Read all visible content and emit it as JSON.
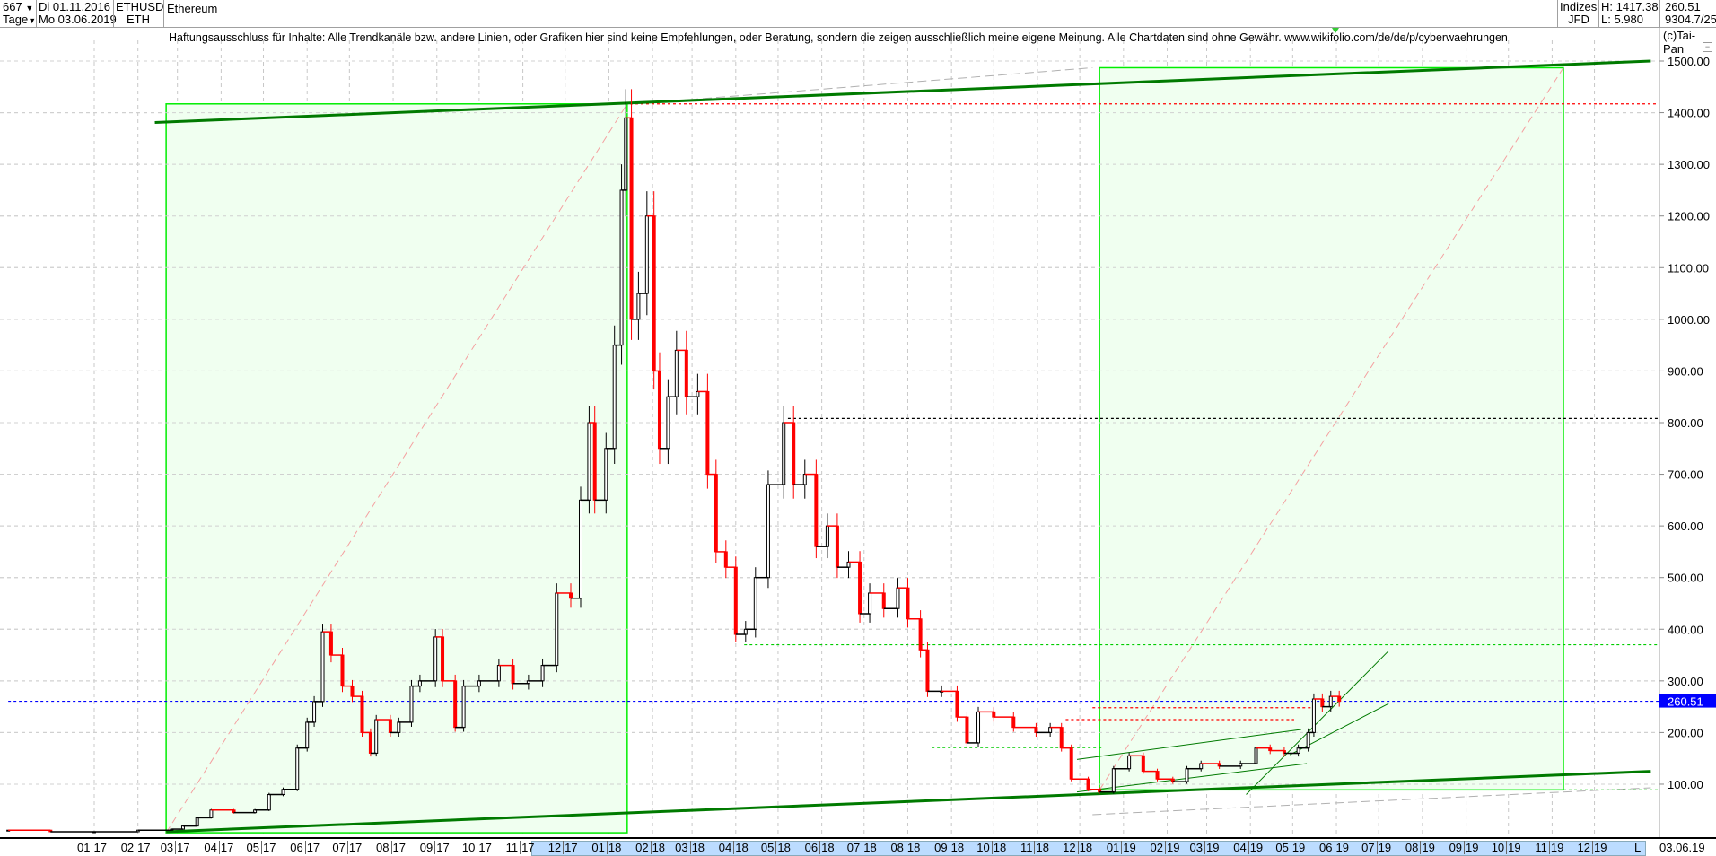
{
  "header": {
    "count": "667",
    "period": "Tage",
    "date_from": "Di 01.11.2016",
    "date_to": "Mo 03.06.2019",
    "symbol": "ETHUSD",
    "symbol_short": "ETH",
    "name": "Ethereum",
    "index_label": "Indizes",
    "index_source": "JFD",
    "high": "H: 1417.38",
    "low": "L: 5.980",
    "last": "260.51",
    "extra": "9304.7/25"
  },
  "disclaimer": "Haftungsausschluss für Inhalte: Alle Trendkanäle bzw. andere Linien, oder Grafiken hier sind keine Empfehlungen, oder Beratung, sondern die zeigen ausschließlich meine eigene Meinung. Alle Chartdaten sind ohne Gewähr.  www.wikifolio.com/de/de/p/cyberwaehrungen",
  "copyright": "(c)Tai-Pan",
  "footer": {
    "mode": "L",
    "last_date": "03.06.19"
  },
  "colors": {
    "up": "#000000",
    "down": "#ff0000",
    "box_fill": "#f0fff0",
    "box_border": "#00ee00",
    "trend": "#007a00",
    "last_price": "#0000ff"
  },
  "chart_data": {
    "type": "candlestick",
    "title": "Ethereum",
    "ylim": [
      0,
      1500
    ],
    "y_scale": "linear",
    "grid": true,
    "y_ticks": [
      "1500.00",
      "1400.00",
      "1300.00",
      "1200.00",
      "1100.00",
      "1000.00",
      "900.00",
      "800.00",
      "700.00",
      "600.00",
      "500.00",
      "400.00",
      "300.00",
      "200.00",
      "100.00"
    ],
    "x_ticks": [
      "01 17",
      "02 17",
      "03 17",
      "04 17",
      "05 17",
      "06 17",
      "07 17",
      "08 17",
      "09 17",
      "10 17",
      "11 17",
      "12 17",
      "01 18",
      "02 18",
      "03 18",
      "04 18",
      "05 18",
      "06 18",
      "07 18",
      "08 18",
      "09 18",
      "10 18",
      "11 18",
      "12 18",
      "01 19",
      "02 19",
      "03 19",
      "04 19",
      "05 19",
      "06 19",
      "07 19",
      "08 19",
      "09 19",
      "10 19",
      "11 19",
      "12 19"
    ],
    "last_price_label": "260.51",
    "series": {
      "dates": [
        "2016-11-01",
        "2016-12-01",
        "2017-01-01",
        "2017-02-01",
        "2017-02-25",
        "2017-03-05",
        "2017-03-15",
        "2017-03-25",
        "2017-04-10",
        "2017-04-25",
        "2017-05-05",
        "2017-05-15",
        "2017-05-25",
        "2017-06-01",
        "2017-06-06",
        "2017-06-12",
        "2017-06-18",
        "2017-06-26",
        "2017-07-03",
        "2017-07-10",
        "2017-07-16",
        "2017-07-20",
        "2017-07-30",
        "2017-08-05",
        "2017-08-14",
        "2017-08-20",
        "2017-08-31",
        "2017-09-05",
        "2017-09-14",
        "2017-09-20",
        "2017-10-01",
        "2017-10-15",
        "2017-10-25",
        "2017-11-05",
        "2017-11-15",
        "2017-11-25",
        "2017-12-05",
        "2017-12-12",
        "2017-12-18",
        "2017-12-22",
        "2017-12-30",
        "2018-01-05",
        "2018-01-10",
        "2018-01-13",
        "2018-01-17",
        "2018-01-22",
        "2018-01-28",
        "2018-02-02",
        "2018-02-06",
        "2018-02-12",
        "2018-02-18",
        "2018-02-25",
        "2018-03-05",
        "2018-03-12",
        "2018-03-18",
        "2018-03-25",
        "2018-04-01",
        "2018-04-08",
        "2018-04-15",
        "2018-04-24",
        "2018-05-05",
        "2018-05-12",
        "2018-05-20",
        "2018-05-28",
        "2018-06-05",
        "2018-06-12",
        "2018-06-20",
        "2018-06-28",
        "2018-07-05",
        "2018-07-15",
        "2018-07-25",
        "2018-08-01",
        "2018-08-10",
        "2018-08-15",
        "2018-08-25",
        "2018-09-05",
        "2018-09-12",
        "2018-09-20",
        "2018-10-01",
        "2018-10-15",
        "2018-10-31",
        "2018-11-10",
        "2018-11-18",
        "2018-11-25",
        "2018-12-07",
        "2018-12-15",
        "2018-12-25",
        "2019-01-05",
        "2019-01-15",
        "2019-01-25",
        "2019-02-05",
        "2019-02-15",
        "2019-02-25",
        "2019-03-10",
        "2019-03-25",
        "2019-04-05",
        "2019-04-15",
        "2019-04-25",
        "2019-05-05",
        "2019-05-12",
        "2019-05-16",
        "2019-05-22",
        "2019-05-28",
        "2019-06-03"
      ],
      "close": [
        11,
        8,
        8,
        11,
        13,
        19,
        35,
        50,
        45,
        50,
        80,
        90,
        170,
        220,
        260,
        395,
        350,
        290,
        270,
        200,
        160,
        225,
        200,
        220,
        290,
        300,
        385,
        300,
        210,
        290,
        300,
        330,
        295,
        300,
        330,
        470,
        460,
        650,
        800,
        650,
        750,
        950,
        1250,
        1390,
        1000,
        1050,
        1200,
        900,
        750,
        850,
        940,
        850,
        860,
        700,
        550,
        520,
        390,
        400,
        500,
        680,
        800,
        680,
        700,
        560,
        600,
        520,
        530,
        430,
        470,
        440,
        480,
        420,
        360,
        280,
        280,
        230,
        180,
        240,
        230,
        210,
        200,
        210,
        170,
        110,
        90,
        85,
        130,
        155,
        125,
        110,
        105,
        130,
        140,
        135,
        140,
        170,
        165,
        160,
        170,
        200,
        265,
        250,
        270,
        260.51
      ]
    },
    "annotations": {
      "boxes": [
        {
          "from": "2017-02-21",
          "to": "2018-01-14",
          "low": 6,
          "high": 1417
        },
        {
          "from": "2018-12-15",
          "to": "2019-11-09",
          "low": 89,
          "high": 1487
        }
      ],
      "trend_lines": [
        {
          "from": [
            "2017-02-13",
            1381
          ],
          "to": [
            "2020-01-10",
            1500
          ],
          "style": "thick"
        },
        {
          "from": [
            "2017-02-21",
            8
          ],
          "to": [
            "2020-01-10",
            125
          ],
          "style": "thick"
        },
        {
          "from": [
            "2018-11-29",
            148
          ],
          "to": [
            "2019-05-07",
            206
          ],
          "style": "thin"
        },
        {
          "from": [
            "2018-11-29",
            85
          ],
          "to": [
            "2019-05-11",
            140
          ],
          "style": "thin"
        },
        {
          "from": [
            "2019-03-29",
            80
          ],
          "to": [
            "2019-07-08",
            358
          ],
          "style": "thin"
        },
        {
          "from": [
            "2019-04-29",
            157
          ],
          "to": [
            "2019-07-08",
            256
          ],
          "style": "thin"
        }
      ],
      "grey_lines": [
        {
          "from": [
            "2018-01-20",
            1417
          ],
          "to": [
            "2018-12-10",
            1487
          ]
        },
        {
          "from": [
            "2018-12-10",
            41
          ],
          "to": [
            "2020-01-10",
            93
          ]
        }
      ],
      "levels": [
        {
          "price": 1417,
          "from": "2018-01-16",
          "color": "#ff0000"
        },
        {
          "price": 808,
          "from": "2018-05-08",
          "color": "#000000"
        },
        {
          "price": 370,
          "from": "2018-04-07",
          "color": "#00cc00"
        },
        {
          "price": 171,
          "from": "2018-08-18",
          "to": "2018-12-18",
          "color": "#00cc00"
        },
        {
          "price": 248,
          "from": "2018-12-10",
          "to": "2019-05-14",
          "color": "#ff0000"
        },
        {
          "price": 225,
          "from": "2018-11-21",
          "to": "2019-05-02",
          "color": "#ff0000"
        },
        {
          "price": 89,
          "from": "2019-11-09",
          "color": "#00cc00"
        },
        {
          "price": 260.51,
          "from": "2016-11-01",
          "color": "#0000ff"
        }
      ]
    }
  }
}
